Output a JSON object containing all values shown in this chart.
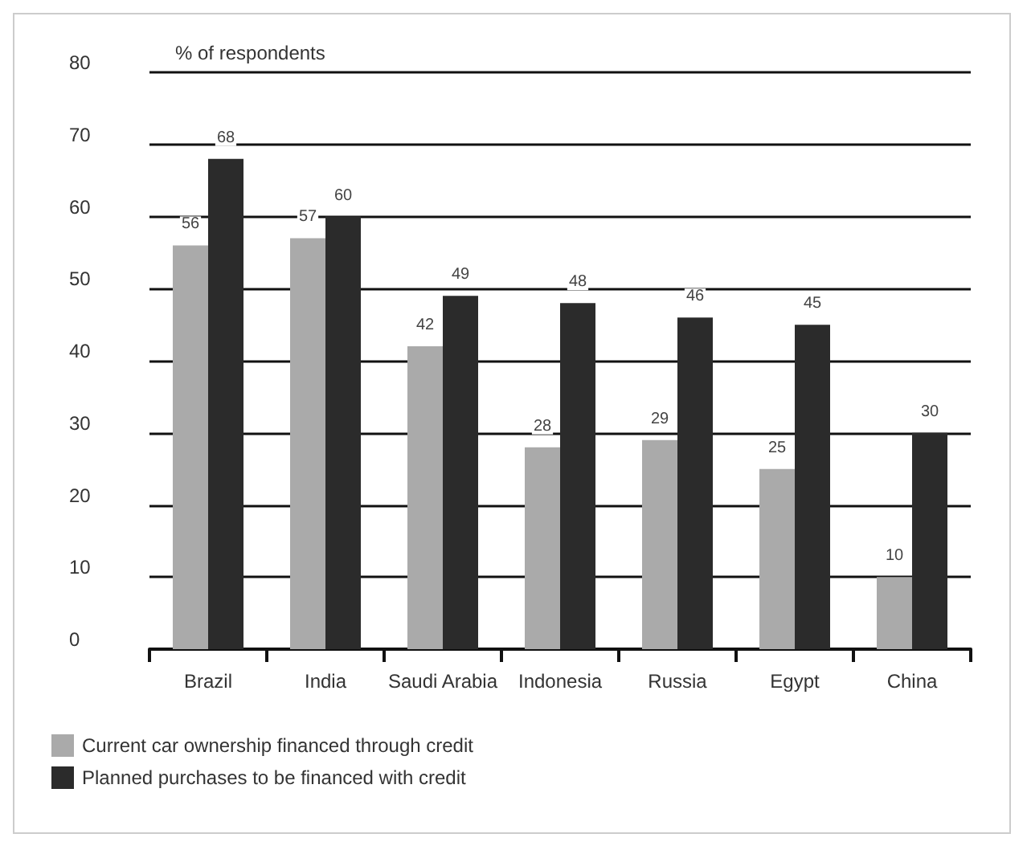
{
  "chart_data": {
    "type": "bar",
    "ylabel": "% of respondents",
    "categories": [
      "Brazil",
      "India",
      "Saudi Arabia",
      "Indonesia",
      "Russia",
      "Egypt",
      "China"
    ],
    "series": [
      {
        "name": "Current car ownership financed through credit",
        "color": "#aaaaaa",
        "values": [
          56,
          57,
          42,
          28,
          29,
          25,
          10
        ]
      },
      {
        "name": "Planned purchases to be financed with credit",
        "color": "#2b2b2b",
        "values": [
          68,
          60,
          49,
          48,
          46,
          45,
          30
        ]
      }
    ],
    "ylim": [
      0,
      80
    ],
    "yticks": [
      0,
      10,
      20,
      30,
      40,
      50,
      60,
      70,
      80
    ],
    "grid": "y",
    "legend": "bottom left",
    "data_labels": true
  }
}
